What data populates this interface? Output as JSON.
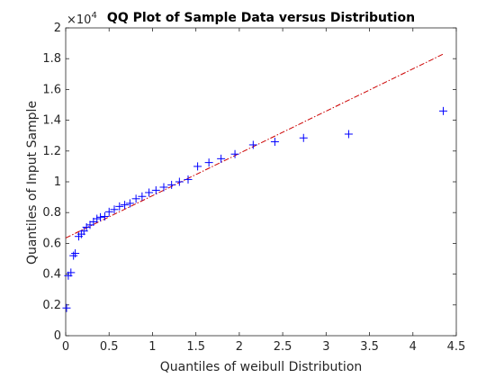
{
  "chart_data": {
    "type": "scatter",
    "title": "QQ Plot of Sample Data versus Distribution",
    "xlabel": "Quantiles of weibull Distribution",
    "ylabel": "Quantiles of Input Sample",
    "xlim": [
      0,
      4.5
    ],
    "ylim": [
      0,
      20000
    ],
    "x_ticks": [
      0,
      0.5,
      1,
      1.5,
      2,
      2.5,
      3,
      3.5,
      4,
      4.5
    ],
    "x_tick_labels": [
      "0",
      "0.5",
      "1",
      "1.5",
      "2",
      "2.5",
      "3",
      "3.5",
      "4",
      "4.5"
    ],
    "y_ticks": [
      0,
      2000,
      4000,
      6000,
      8000,
      10000,
      12000,
      14000,
      16000,
      18000,
      20000
    ],
    "y_tick_labels": [
      "0",
      "0.2",
      "0.4",
      "0.6",
      "0.8",
      "1",
      "1.2",
      "1.4",
      "1.6",
      "1.8",
      "2"
    ],
    "y_exponent_base": "×10",
    "y_exponent_power": "4",
    "grid": false,
    "colors": {
      "points": "#0000ff",
      "reference_line": "#cc0000",
      "axes": "#262626"
    },
    "series": [
      {
        "marker": "+",
        "x": [
          0.01,
          0.03,
          0.06,
          0.09,
          0.11,
          0.15,
          0.18,
          0.21,
          0.24,
          0.28,
          0.32,
          0.36,
          0.4,
          0.45,
          0.5,
          0.56,
          0.62,
          0.68,
          0.74,
          0.81,
          0.88,
          0.96,
          1.04,
          1.13,
          1.22,
          1.31,
          1.41,
          1.52,
          1.65,
          1.79,
          1.95,
          2.16,
          2.41,
          2.74,
          3.26,
          4.35
        ],
        "y": [
          1800,
          3900,
          4100,
          5200,
          5350,
          6450,
          6600,
          6800,
          7050,
          7200,
          7400,
          7600,
          7700,
          7750,
          8050,
          8200,
          8400,
          8500,
          8600,
          8900,
          9050,
          9300,
          9450,
          9650,
          9800,
          10000,
          10150,
          11000,
          11250,
          11500,
          11800,
          12400,
          12600,
          12850,
          13100,
          14600
        ]
      }
    ],
    "reference_line": {
      "style": "dash-dot",
      "x": [
        0,
        4.35
      ],
      "y": [
        6350,
        18300
      ]
    }
  }
}
